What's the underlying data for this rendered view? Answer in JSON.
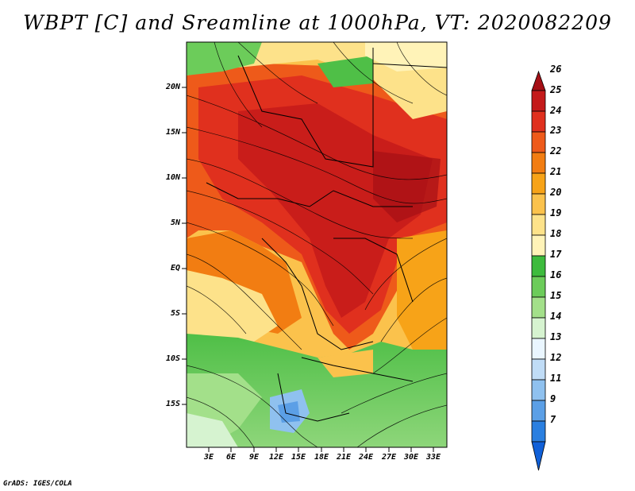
{
  "title": "WBPT [C] and Sreamline at 1000hPa, VT: 2020082209",
  "footer": "GrADS: IGES/COLA",
  "map": {
    "lat_labels": [
      "20N",
      "15N",
      "10N",
      "5N",
      "EQ",
      "5S",
      "10S",
      "15S"
    ],
    "lon_labels": [
      "3E",
      "6E",
      "9E",
      "12E",
      "15E",
      "18E",
      "21E",
      "24E",
      "27E",
      "30E",
      "33E"
    ]
  },
  "colorbar": {
    "labels": [
      "26",
      "25",
      "24",
      "23",
      "22",
      "21",
      "20",
      "19",
      "18",
      "17",
      "16",
      "15",
      "14",
      "13",
      "12",
      "11",
      "9",
      "7"
    ],
    "colors": [
      "#a50f15",
      "#c41a1a",
      "#e0301e",
      "#ee5a1a",
      "#f27d12",
      "#f7a318",
      "#fbc24c",
      "#fde28a",
      "#fff3b8",
      "#3dbb3d",
      "#6ccc5a",
      "#a3e08a",
      "#d6f3d0",
      "#eaf6ff",
      "#c0dcf6",
      "#8fc1ef",
      "#5b9fe6",
      "#2a7fe0",
      "#1060d8"
    ]
  }
}
